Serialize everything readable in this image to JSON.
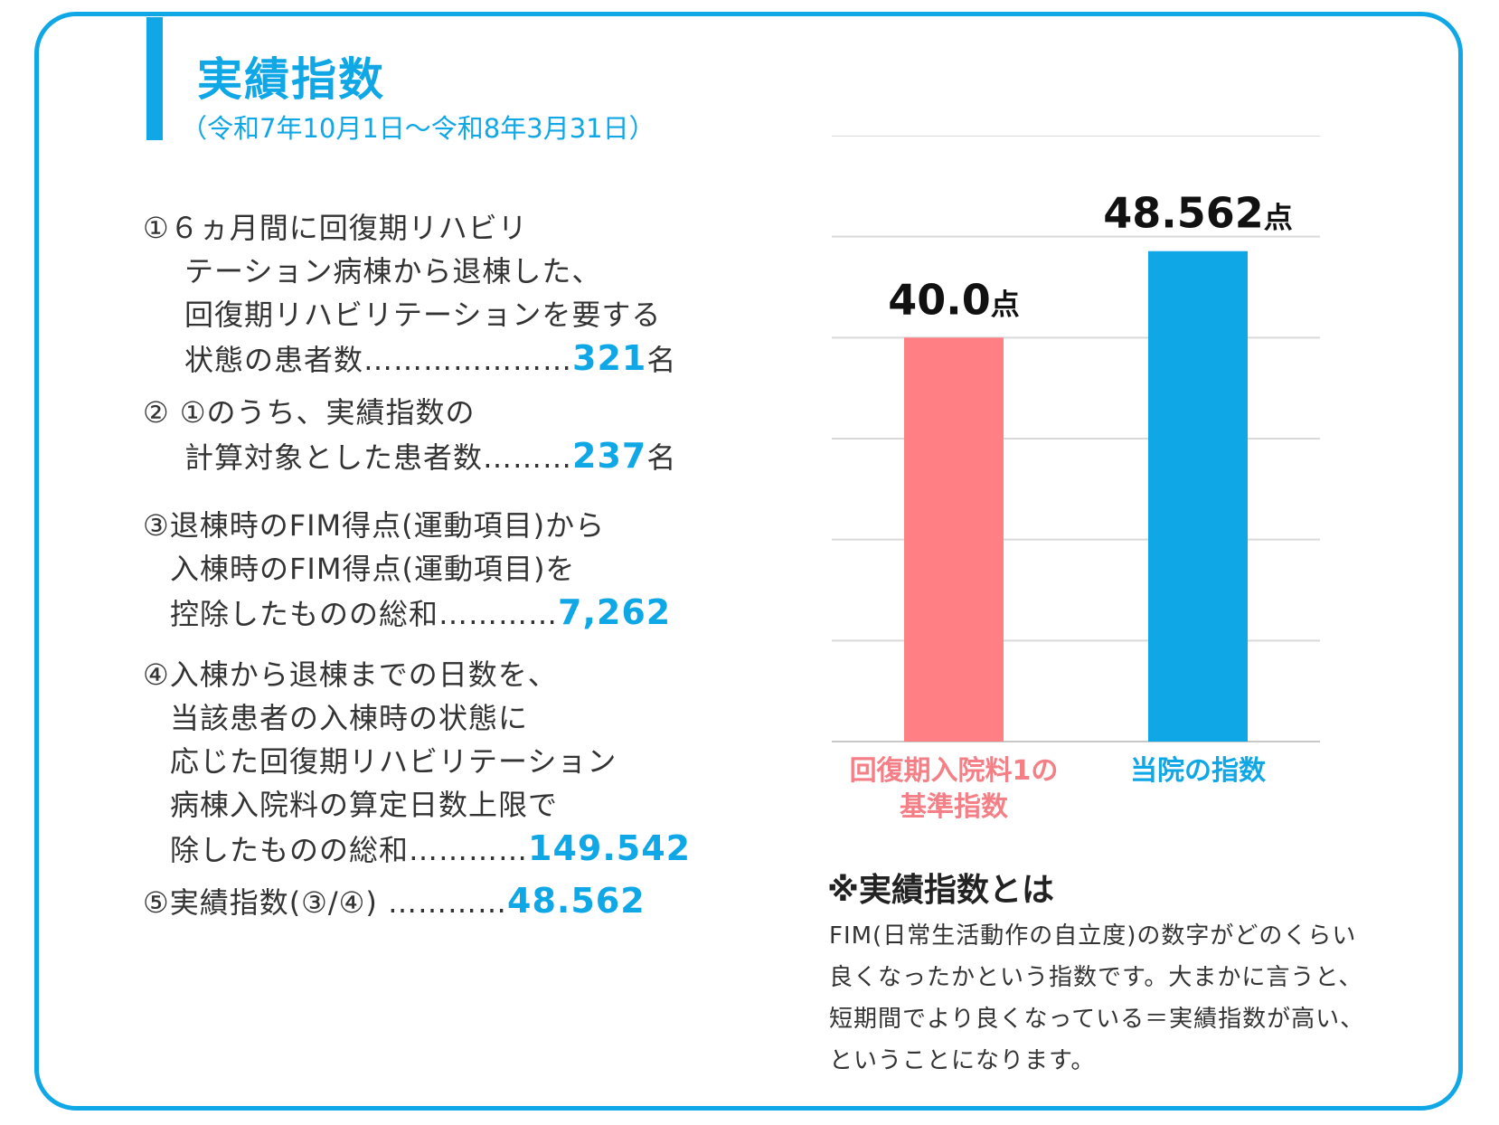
{
  "header": {
    "title": "実績指数",
    "subtitle": "（令和7年10月1日～令和8年3月31日）"
  },
  "items": [
    {
      "lines": [
        "①６ヵ月間に回復期リハビリ",
        "テーション病棟から退棟した、",
        "回復期リハビリテーションを要する"
      ],
      "last_prefix": "状態の患者数…………………",
      "value": "321",
      "unit": "名"
    },
    {
      "lines": [
        "② ①のうち、実績指数の"
      ],
      "last_prefix": "計算対象とした患者数………",
      "value": "237",
      "unit": "名"
    },
    {
      "lines": [
        "③退棟時のFIM得点(運動項目)から",
        "入棟時のFIM得点(運動項目)を"
      ],
      "last_prefix": "控除したものの総和…………",
      "value": "7,262",
      "unit": ""
    },
    {
      "lines": [
        "④入棟から退棟までの日数を、",
        "当該患者の入棟時の状態に",
        "応じた回復期リハビリテーション",
        "病棟入院料の算定日数上限で"
      ],
      "last_prefix": "除したものの総和…………",
      "value": "149.542",
      "unit": ""
    },
    {
      "lines": [],
      "last_prefix": "⑤実績指数(③/④) …………",
      "value": "48.562",
      "unit": ""
    }
  ],
  "chart_data": {
    "type": "bar",
    "categories": [
      "回復期入院料1の\n基準指数",
      "当院の指数"
    ],
    "values": [
      40.0,
      48.562
    ],
    "value_labels": [
      "40.0",
      "48.562"
    ],
    "value_unit": "点",
    "colors": [
      "#ff7f85",
      "#10a7e6"
    ],
    "category_label_colors": [
      "#f57f86",
      "#10a7e6"
    ],
    "ylim": [
      0,
      60
    ],
    "gridline_step": 10,
    "grid": true,
    "axes_visible": false
  },
  "note": {
    "title": "※実績指数とは",
    "lines": [
      "FIM(日常生活動作の自立度)の数字がどのくらい",
      "良くなったかという指数です。大まかに言うと、",
      "短期間でより良くなっている＝実績指数が高い、",
      "ということになります。"
    ]
  }
}
